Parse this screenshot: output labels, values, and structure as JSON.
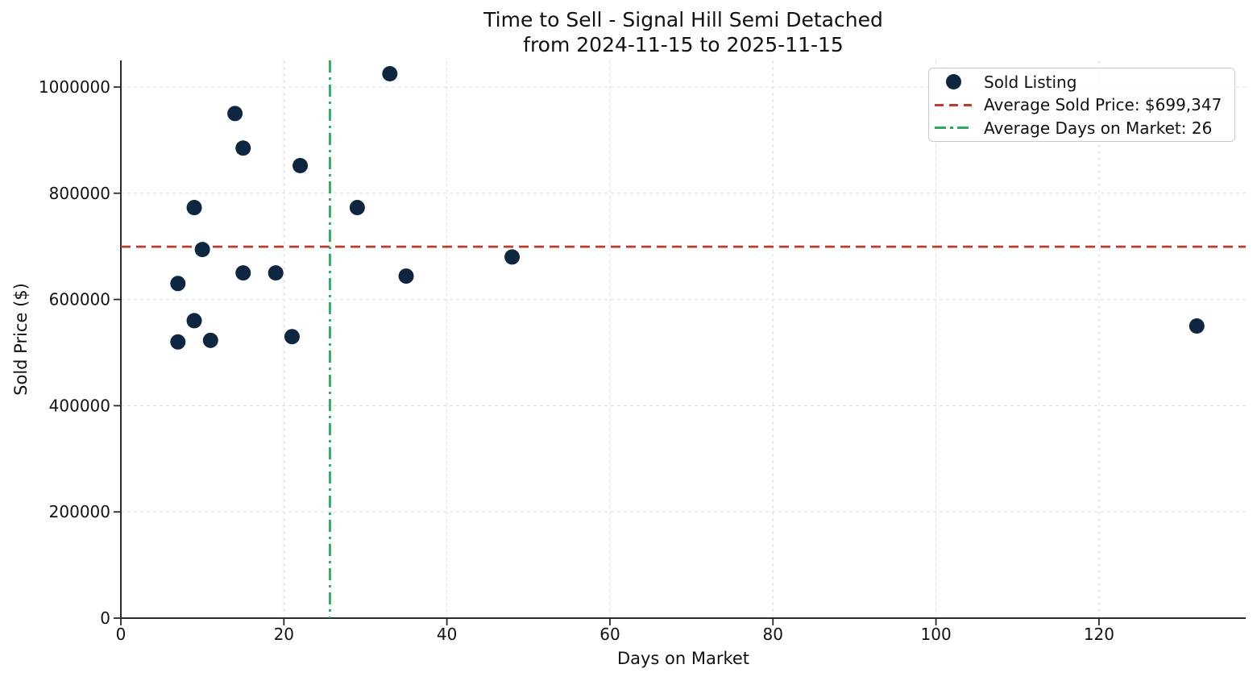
{
  "title": {
    "line1": "Time to Sell - Signal Hill Semi Detached",
    "line2": "from 2024-11-15 to 2025-11-15"
  },
  "chart_data": {
    "type": "scatter",
    "title": "Time to Sell - Signal Hill Semi Detached from 2024-11-15 to 2025-11-15",
    "xlabel": "Days on Market",
    "ylabel": "Sold Price ($)",
    "xlim": [
      0,
      138
    ],
    "ylim": [
      0,
      1050000
    ],
    "xticks": [
      0,
      20,
      40,
      60,
      80,
      100,
      120
    ],
    "yticks": [
      0,
      200000,
      400000,
      600000,
      800000,
      1000000
    ],
    "grid": true,
    "legend_position": "upper-right",
    "series": [
      {
        "name": "Sold Listing",
        "kind": "scatter",
        "color": "#0e2640",
        "points": [
          [
            7,
            520000
          ],
          [
            7,
            630000
          ],
          [
            9,
            560000
          ],
          [
            9,
            773000
          ],
          [
            10,
            694000
          ],
          [
            11,
            523000
          ],
          [
            14,
            950000
          ],
          [
            15,
            885000
          ],
          [
            15,
            650000
          ],
          [
            19,
            650000
          ],
          [
            21,
            530000
          ],
          [
            22,
            852000
          ],
          [
            29,
            773000
          ],
          [
            33,
            1025000
          ],
          [
            35,
            644000
          ],
          [
            48,
            680000
          ],
          [
            132,
            550000
          ]
        ]
      },
      {
        "name": "Average Sold Price: $699,347",
        "kind": "hline",
        "value": 699347,
        "color": "#c0392b",
        "linestyle": "dashed"
      },
      {
        "name": "Average Days on Market: 26",
        "kind": "vline",
        "value": 25.65,
        "color": "#2aa95f",
        "linestyle": "dashdot"
      }
    ],
    "avg_sold_price_label": "$699,347",
    "avg_days_on_market": 26
  },
  "style": {
    "grid_color": "#dcdcdc",
    "spine_color": "#2a2a2a",
    "tick_text_color": "#111111",
    "background": "#ffffff",
    "marker_radius": 9.5
  }
}
